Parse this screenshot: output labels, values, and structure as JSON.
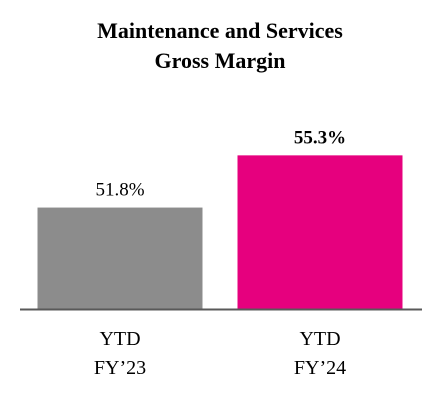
{
  "chart_data": {
    "type": "bar",
    "title_lines": [
      "Maintenance and Services",
      "Gross Margin"
    ],
    "categories": [
      {
        "line1": "YTD",
        "line2": "FY’23"
      },
      {
        "line1": "YTD",
        "line2": "FY’24"
      }
    ],
    "values": [
      51.8,
      55.3
    ],
    "value_labels": [
      "51.8%",
      "55.3%"
    ],
    "value_label_bold": [
      false,
      true
    ],
    "colors": [
      "#8c8c8c",
      "#e6007e"
    ],
    "axis_color": "#595959",
    "ylim": [
      45,
      57
    ],
    "grid": false,
    "legend": "none"
  }
}
